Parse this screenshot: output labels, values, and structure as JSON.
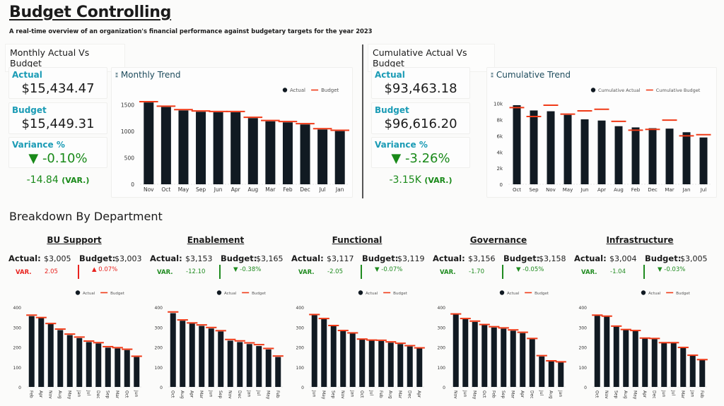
{
  "header": {
    "title": "Budget Controlling",
    "subtitle": "A real-time overview of an organization's financial performance against budgetary targets for the year 2023"
  },
  "monthly": {
    "section_title": "Monthly Actual Vs Budget",
    "actual_label": "Actual",
    "actual_value": "$15,434.47",
    "budget_label": "Budget",
    "budget_value": "$15,449.31",
    "variance_label": "Variance %",
    "variance_arrow": "▼",
    "variance_value": "-0.10%",
    "variance_abs": "-14.84",
    "variance_abs_suffix": "(VAR.)",
    "chart_title": "Monthly Trend",
    "chart_icon": "pin-icon"
  },
  "cumulative": {
    "section_title": "Cumulative Actual Vs Budget",
    "actual_label": "Actual",
    "actual_value": "$93,463.18",
    "budget_label": "Budget",
    "budget_value": "$96,616.20",
    "variance_label": "Variance %",
    "variance_arrow": "▼",
    "variance_value": "-3.26%",
    "variance_abs": "-3.15K",
    "variance_abs_suffix": "(VAR.)",
    "chart_title": "Cumulative Trend",
    "chart_icon": "pin-icon"
  },
  "breakdown": {
    "section_title": "Breakdown By Department",
    "actual_label": "Actual:",
    "budget_label": "Budget:",
    "var_label": "VAR.",
    "departments": [
      {
        "name": "BU Support",
        "actual": "$3,005",
        "budget": "$3,003",
        "var": "2.05",
        "arrow": "▲",
        "var_pct": "0.07%",
        "status_color": "#e8231f"
      },
      {
        "name": "Enablement",
        "actual": "$3,153",
        "budget": "$3,165",
        "var": "-12.10",
        "arrow": "▼",
        "var_pct": "-0.38%",
        "status_color": "#1f8b1f"
      },
      {
        "name": "Functional",
        "actual": "$3,117",
        "budget": "$3,119",
        "var": "-2.05",
        "arrow": "▼",
        "var_pct": "-0.07%",
        "status_color": "#1f8b1f"
      },
      {
        "name": "Governance",
        "actual": "$3,156",
        "budget": "$3,158",
        "var": "-1.70",
        "arrow": "▼",
        "var_pct": "-0.05%",
        "status_color": "#1f8b1f"
      },
      {
        "name": "Infrastructure",
        "actual": "$3,004",
        "budget": "$3,005",
        "var": "-1.04",
        "arrow": "▼",
        "var_pct": "-0.03%",
        "status_color": "#1f8b1f"
      }
    ]
  },
  "colors": {
    "bar": "#111a22",
    "budget_marker": "#f03a17",
    "kpi_label": "#1a9bb5",
    "positive": "#1f8b1f",
    "negative": "#e8231f"
  },
  "chart_data": [
    {
      "id": "monthly-trend",
      "type": "bar",
      "title": "Monthly Trend",
      "legend": [
        "Actual",
        "Budget"
      ],
      "legend_position": "top-right",
      "categories": [
        "Nov",
        "Oct",
        "May",
        "Sep",
        "Jun",
        "Apr",
        "Aug",
        "Mar",
        "Feb",
        "Dec",
        "Jul",
        "Jan"
      ],
      "series": [
        {
          "name": "Actual",
          "values": [
            1545,
            1460,
            1395,
            1370,
            1360,
            1360,
            1250,
            1190,
            1170,
            1130,
            1035,
            1005
          ]
        },
        {
          "name": "Budget",
          "values": [
            1560,
            1475,
            1410,
            1385,
            1375,
            1375,
            1265,
            1205,
            1185,
            1145,
            1050,
            1020
          ]
        }
      ],
      "yticks": [
        "0",
        "500",
        "1000",
        "1500"
      ],
      "ylim": [
        0,
        1600
      ]
    },
    {
      "id": "cumulative-trend",
      "type": "bar",
      "title": "Cumulative Trend",
      "legend": [
        "Cumulative Actual",
        "Cumulative Budget"
      ],
      "legend_position": "top-right",
      "categories": [
        "Oct",
        "Sep",
        "Nov",
        "May",
        "Jun",
        "Apr",
        "Aug",
        "Feb",
        "Dec",
        "Mar",
        "Jan",
        "Jul"
      ],
      "series": [
        {
          "name": "Cumulative Actual",
          "values": [
            9800,
            9150,
            9050,
            8600,
            8050,
            7900,
            7200,
            7050,
            6950,
            6900,
            6450,
            5800
          ]
        },
        {
          "name": "Cumulative Budget",
          "values": [
            9500,
            8400,
            9800,
            8700,
            9100,
            9300,
            7800,
            6700,
            6800,
            7950,
            6000,
            6150
          ]
        }
      ],
      "yticks": [
        "0",
        "2k",
        "4k",
        "6k",
        "8k",
        "10k"
      ],
      "ylim": [
        0,
        10500
      ]
    },
    {
      "id": "dept-bu-support",
      "type": "bar",
      "legend": [
        "Actual",
        "Budget"
      ],
      "legend_position": "top-right",
      "categories": [
        "Feb",
        "Apr",
        "Nov",
        "Aug",
        "May",
        "Jan",
        "Jul",
        "Dec",
        "Sep",
        "Mar",
        "Oct",
        "Jun"
      ],
      "series": [
        {
          "name": "Actual",
          "values": [
            355,
            345,
            315,
            285,
            260,
            245,
            225,
            218,
            197,
            193,
            185,
            150
          ]
        },
        {
          "name": "Budget",
          "values": [
            360,
            348,
            318,
            290,
            265,
            250,
            230,
            222,
            202,
            197,
            189,
            154
          ]
        }
      ],
      "yticks": [
        "0",
        "100",
        "200",
        "300",
        "400"
      ],
      "ylim": [
        0,
        400
      ]
    },
    {
      "id": "dept-enablement",
      "type": "bar",
      "legend": [
        "Actual",
        "Budget"
      ],
      "legend_position": "top-right",
      "categories": [
        "Oct",
        "Aug",
        "Apr",
        "Mar",
        "Jun",
        "Sep",
        "Nov",
        "Dec",
        "Jan",
        "Jul",
        "May",
        "Feb"
      ],
      "series": [
        {
          "name": "Actual",
          "values": [
            370,
            332,
            318,
            306,
            293,
            278,
            232,
            225,
            215,
            205,
            188,
            150
          ]
        },
        {
          "name": "Budget",
          "values": [
            376,
            336,
            321,
            311,
            298,
            282,
            238,
            231,
            221,
            212,
            193,
            155
          ]
        }
      ],
      "yticks": [
        "0",
        "100",
        "200",
        "300",
        "400"
      ],
      "ylim": [
        0,
        400
      ]
    },
    {
      "id": "dept-functional",
      "type": "bar",
      "legend": [
        "Actual",
        "Budget"
      ],
      "legend_position": "top-right",
      "categories": [
        "Jun",
        "May",
        "Sep",
        "Nov",
        "Jan",
        "Oct",
        "Jul",
        "Feb",
        "Aug",
        "Mar",
        "Dec",
        "Apr"
      ],
      "series": [
        {
          "name": "Actual",
          "values": [
            360,
            340,
            305,
            280,
            268,
            238,
            232,
            230,
            222,
            215,
            203,
            193
          ]
        },
        {
          "name": "Budget",
          "values": [
            363,
            343,
            308,
            283,
            271,
            240,
            235,
            234,
            226,
            219,
            207,
            196
          ]
        }
      ],
      "yticks": [
        "0",
        "100",
        "200",
        "300",
        "400"
      ],
      "ylim": [
        0,
        400
      ]
    },
    {
      "id": "dept-governance",
      "type": "bar",
      "legend": [
        "Actual",
        "Budget"
      ],
      "legend_position": "top-right",
      "categories": [
        "Nov",
        "Jun",
        "May",
        "Oct",
        "Feb",
        "Sep",
        "Mar",
        "Apr",
        "Dec",
        "Jul",
        "Aug",
        "Jan"
      ],
      "series": [
        {
          "name": "Actual",
          "values": [
            363,
            340,
            326,
            310,
            298,
            292,
            282,
            270,
            240,
            153,
            128,
            123
          ]
        },
        {
          "name": "Budget",
          "values": [
            366,
            343,
            330,
            313,
            302,
            296,
            286,
            274,
            243,
            157,
            131,
            126
          ]
        }
      ],
      "yticks": [
        "0",
        "100",
        "200",
        "300",
        "400"
      ],
      "ylim": [
        0,
        400
      ]
    },
    {
      "id": "dept-infrastructure",
      "type": "bar",
      "legend": [
        "Actual",
        "Budget"
      ],
      "legend_position": "top-right",
      "categories": [
        "Oct",
        "Nov",
        "Sep",
        "Aug",
        "May",
        "Apr",
        "Dec",
        "Jun",
        "Jul",
        "Mar",
        "Jan",
        "Feb"
      ],
      "series": [
        {
          "name": "Actual",
          "values": [
            357,
            352,
            302,
            285,
            280,
            243,
            240,
            220,
            220,
            195,
            157,
            135
          ]
        },
        {
          "name": "Budget",
          "values": [
            360,
            355,
            305,
            288,
            283,
            245,
            243,
            222,
            222,
            198,
            159,
            137
          ]
        }
      ],
      "yticks": [
        "0",
        "100",
        "200",
        "300",
        "400"
      ],
      "ylim": [
        0,
        400
      ]
    }
  ]
}
